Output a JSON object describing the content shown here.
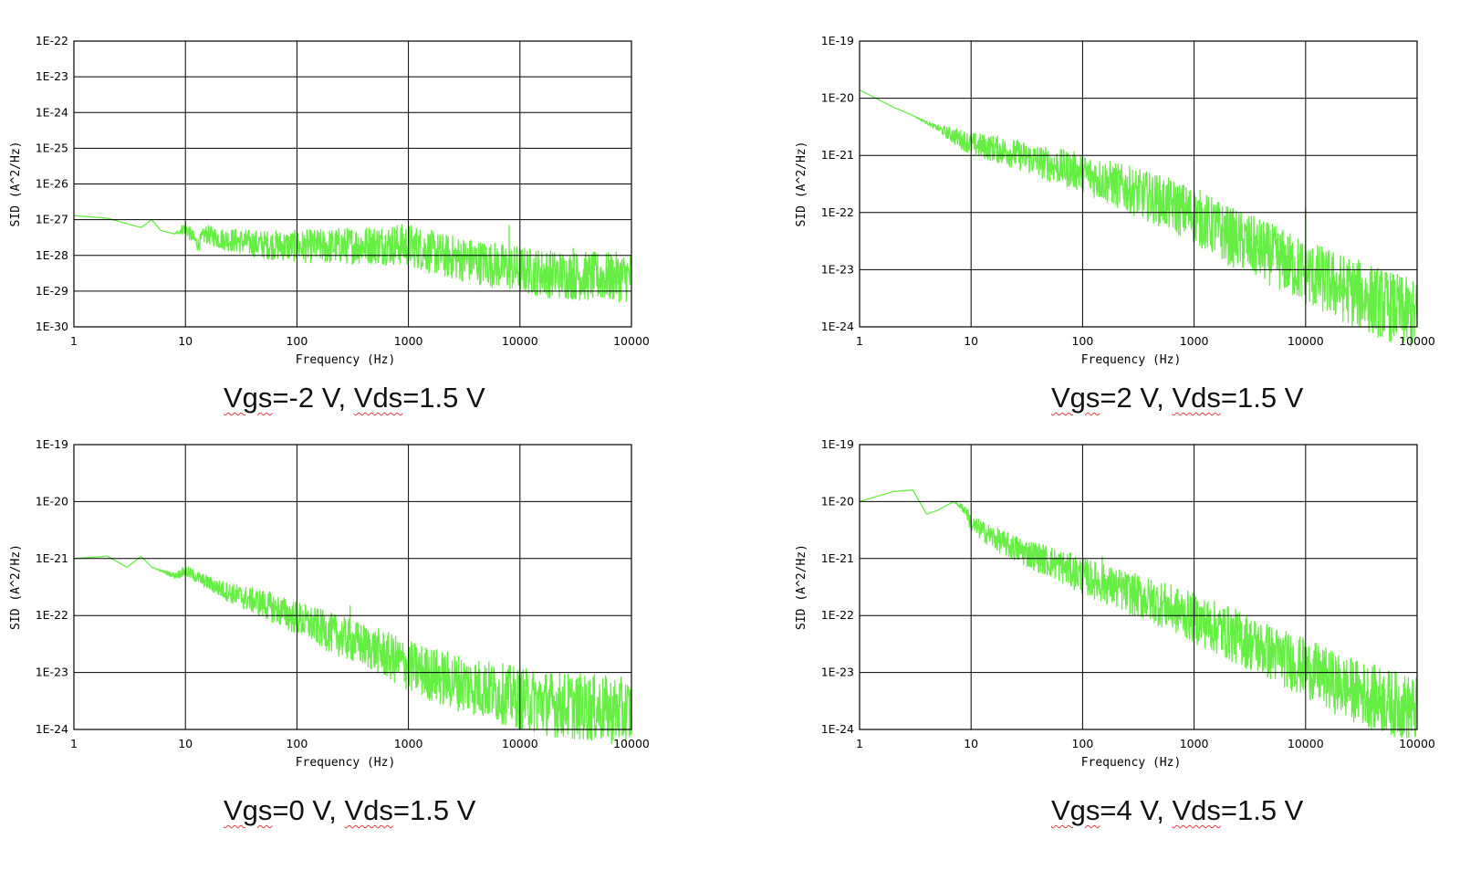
{
  "colors": {
    "series": "#66ee44",
    "grid": "#000000",
    "text": "#111111"
  },
  "chart_data": [
    {
      "type": "line",
      "xscale": "log",
      "yscale": "log",
      "xlabel": "Frequency (Hz)",
      "ylabel": "SID (A^2/Hz)",
      "xlim": [
        1,
        100000
      ],
      "ylim": [
        1e-30,
        1e-22
      ],
      "xticks": [
        "1",
        "10",
        "100",
        "1000",
        "10000",
        "10000"
      ],
      "yticks": [
        "1E-30",
        "1E-29",
        "1E-28",
        "1E-27",
        "1E-26",
        "1E-25",
        "1E-24",
        "1E-23",
        "1E-22"
      ],
      "grid": true,
      "caption": {
        "vgs": "Vgs",
        "mid": "=-2 V, ",
        "vds": "Vds",
        "end": "=1.5 V"
      },
      "series": [
        {
          "x": [
            1,
            2,
            4,
            5,
            6,
            8,
            10,
            13,
            15,
            20,
            30,
            50,
            100,
            200,
            500,
            1000,
            2000,
            5000,
            10000,
            20000,
            50000,
            100000
          ],
          "y": [
            1.3e-27,
            1.1e-27,
            6e-28,
            1e-27,
            5e-28,
            4e-28,
            6e-28,
            2e-28,
            4e-28,
            3e-28,
            2.5e-28,
            2e-28,
            1.8e-28,
            1.8e-28,
            2e-28,
            2e-28,
            1e-28,
            6e-29,
            4e-29,
            3e-29,
            2.5e-29,
            2.5e-29
          ],
          "spread": [
            0,
            0,
            0,
            0,
            0,
            0,
            0.2,
            0.2,
            0.25,
            0.3,
            0.35,
            0.4,
            0.45,
            0.5,
            0.55,
            0.6,
            0.62,
            0.64,
            0.66,
            0.68,
            0.7,
            0.7
          ],
          "spikes": [
            {
              "x": 8000,
              "y": 7e-28
            },
            {
              "x": 30000,
              "y": 1.6e-28
            }
          ]
        }
      ]
    },
    {
      "type": "line",
      "xscale": "log",
      "yscale": "log",
      "xlabel": "Frequency (Hz)",
      "ylabel": "SID (A^2/Hz)",
      "xlim": [
        1,
        100000
      ],
      "ylim": [
        1e-24,
        1e-19
      ],
      "xticks": [
        "1",
        "10",
        "100",
        "1000",
        "10000",
        "10000"
      ],
      "yticks": [
        "1E-24",
        "1E-23",
        "1E-22",
        "1E-21",
        "1E-20",
        "1E-19"
      ],
      "grid": true,
      "caption": {
        "vgs": "Vgs",
        "mid": "=2 V, ",
        "vds": "Vds",
        "end": "=1.5 V"
      },
      "series": [
        {
          "x": [
            1,
            2,
            3,
            5,
            7,
            10,
            20,
            50,
            100,
            200,
            500,
            1000,
            2000,
            5000,
            10000,
            20000,
            50000,
            100000
          ],
          "y": [
            1.4e-20,
            7e-21,
            5e-21,
            3e-21,
            2.2e-21,
            1.6e-21,
            1.2e-21,
            7e-22,
            5e-22,
            3e-22,
            1.6e-22,
            9e-23,
            4e-23,
            1.8e-23,
            9e-24,
            5e-24,
            2.5e-24,
            1.5e-24
          ],
          "spread": [
            0,
            0,
            0,
            0.05,
            0.15,
            0.2,
            0.25,
            0.3,
            0.35,
            0.4,
            0.45,
            0.5,
            0.52,
            0.55,
            0.58,
            0.6,
            0.62,
            0.62
          ],
          "spikes": [
            {
              "x": 10000,
              "y": 1.2e-22
            }
          ]
        }
      ]
    },
    {
      "type": "line",
      "xscale": "log",
      "yscale": "log",
      "xlabel": "Frequency (Hz)",
      "ylabel": "SID (A^2/Hz)",
      "xlim": [
        1,
        100000
      ],
      "ylim": [
        1e-24,
        1e-19
      ],
      "xticks": [
        "1",
        "10",
        "100",
        "1000",
        "10000",
        "10000"
      ],
      "yticks": [
        "1E-24",
        "1E-23",
        "1E-22",
        "1E-21",
        "1E-20",
        "1E-19"
      ],
      "grid": true,
      "caption": {
        "vgs": "Vgs",
        "mid": "=0 V, ",
        "vds": "Vds",
        "end": "=1.5 V"
      },
      "series": [
        {
          "x": [
            1,
            2,
            3,
            4,
            5,
            8,
            10,
            15,
            20,
            30,
            50,
            100,
            200,
            500,
            1000,
            2000,
            5000,
            10000,
            20000,
            50000,
            100000
          ],
          "y": [
            1e-21,
            1.1e-21,
            7e-22,
            1.1e-21,
            7e-22,
            5e-22,
            6e-22,
            4e-22,
            3e-22,
            2.2e-22,
            1.6e-22,
            9e-23,
            5e-23,
            2.5e-23,
            1.3e-23,
            8e-24,
            5e-24,
            3.5e-24,
            2.8e-24,
            2.3e-24,
            2e-24
          ],
          "spread": [
            0,
            0,
            0,
            0,
            0,
            0.05,
            0.1,
            0.12,
            0.15,
            0.2,
            0.25,
            0.3,
            0.35,
            0.4,
            0.45,
            0.5,
            0.52,
            0.55,
            0.58,
            0.6,
            0.6
          ],
          "spikes": [
            {
              "x": 300,
              "y": 1.5e-22
            },
            {
              "x": 5000,
              "y": 1.2e-23
            }
          ]
        }
      ]
    },
    {
      "type": "line",
      "xscale": "log",
      "yscale": "log",
      "xlabel": "Frequency (Hz)",
      "ylabel": "SID (A^2/Hz)",
      "xlim": [
        1,
        100000
      ],
      "ylim": [
        1e-24,
        1e-19
      ],
      "xticks": [
        "1",
        "10",
        "100",
        "1000",
        "10000",
        "10000"
      ],
      "yticks": [
        "1E-24",
        "1E-23",
        "1E-22",
        "1E-21",
        "1E-20",
        "1E-19"
      ],
      "grid": true,
      "caption": {
        "vgs": "Vgs",
        "mid": "=4 V, ",
        "vds": "Vds",
        "end": "=1.5 V"
      },
      "series": [
        {
          "x": [
            1,
            2,
            3,
            4,
            5,
            7,
            9,
            10,
            15,
            20,
            30,
            50,
            100,
            200,
            500,
            1000,
            2000,
            5000,
            10000,
            20000,
            50000,
            100000
          ],
          "y": [
            1e-20,
            1.5e-20,
            1.6e-20,
            6e-21,
            7e-21,
            1e-20,
            7e-21,
            4e-21,
            2.5e-21,
            1.8e-21,
            1.3e-21,
            9e-22,
            5e-22,
            3e-22,
            1.6e-22,
            9e-23,
            5e-23,
            2.2e-23,
            1.2e-23,
            6e-24,
            3.2e-24,
            2.2e-24
          ],
          "spread": [
            0,
            0,
            0,
            0,
            0,
            0,
            0.1,
            0.15,
            0.2,
            0.22,
            0.25,
            0.28,
            0.32,
            0.36,
            0.4,
            0.44,
            0.48,
            0.5,
            0.52,
            0.55,
            0.58,
            0.58
          ],
          "spikes": [
            {
              "x": 150,
              "y": 1.1e-21
            }
          ]
        }
      ]
    }
  ]
}
